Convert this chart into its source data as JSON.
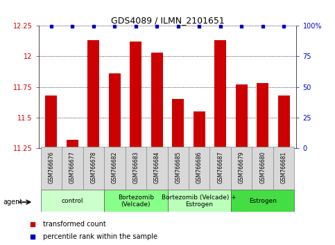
{
  "title": "GDS4089 / ILMN_2101651",
  "samples": [
    "GSM766676",
    "GSM766677",
    "GSM766678",
    "GSM766682",
    "GSM766683",
    "GSM766684",
    "GSM766685",
    "GSM766686",
    "GSM766687",
    "GSM766679",
    "GSM766680",
    "GSM766681"
  ],
  "bar_values": [
    11.68,
    11.32,
    12.13,
    11.86,
    12.12,
    12.03,
    11.65,
    11.55,
    12.13,
    11.77,
    11.78,
    11.68
  ],
  "percentile_values": [
    100,
    100,
    100,
    100,
    100,
    100,
    100,
    100,
    100,
    100,
    100,
    100
  ],
  "bar_color": "#cc0000",
  "percentile_color": "#0000cc",
  "ymin": 11.25,
  "ymax": 12.25,
  "yticks": [
    11.25,
    11.5,
    11.75,
    12.0,
    12.25
  ],
  "ytick_labels": [
    "11.25",
    "11.5",
    "11.75",
    "12",
    "12.25"
  ],
  "y2ticks": [
    0,
    25,
    50,
    75,
    100
  ],
  "y2tick_labels": [
    "0",
    "25",
    "50",
    "75",
    "100%"
  ],
  "groups": [
    {
      "label": "control",
      "start": 0,
      "end": 3,
      "color": "#ccffcc"
    },
    {
      "label": "Bortezomib\n(Velcade)",
      "start": 3,
      "end": 6,
      "color": "#88ff88"
    },
    {
      "label": "Bortezomib (Velcade) +\nEstrogen",
      "start": 6,
      "end": 9,
      "color": "#bbffbb"
    },
    {
      "label": "Estrogen",
      "start": 9,
      "end": 12,
      "color": "#44dd44"
    }
  ],
  "agent_label": "agent",
  "legend_bar_label": "transformed count",
  "legend_dot_label": "percentile rank within the sample",
  "title_fontsize": 9,
  "tick_fontsize": 7,
  "label_fontsize": 5.5,
  "group_fontsize": 6.5,
  "legend_fontsize": 7
}
